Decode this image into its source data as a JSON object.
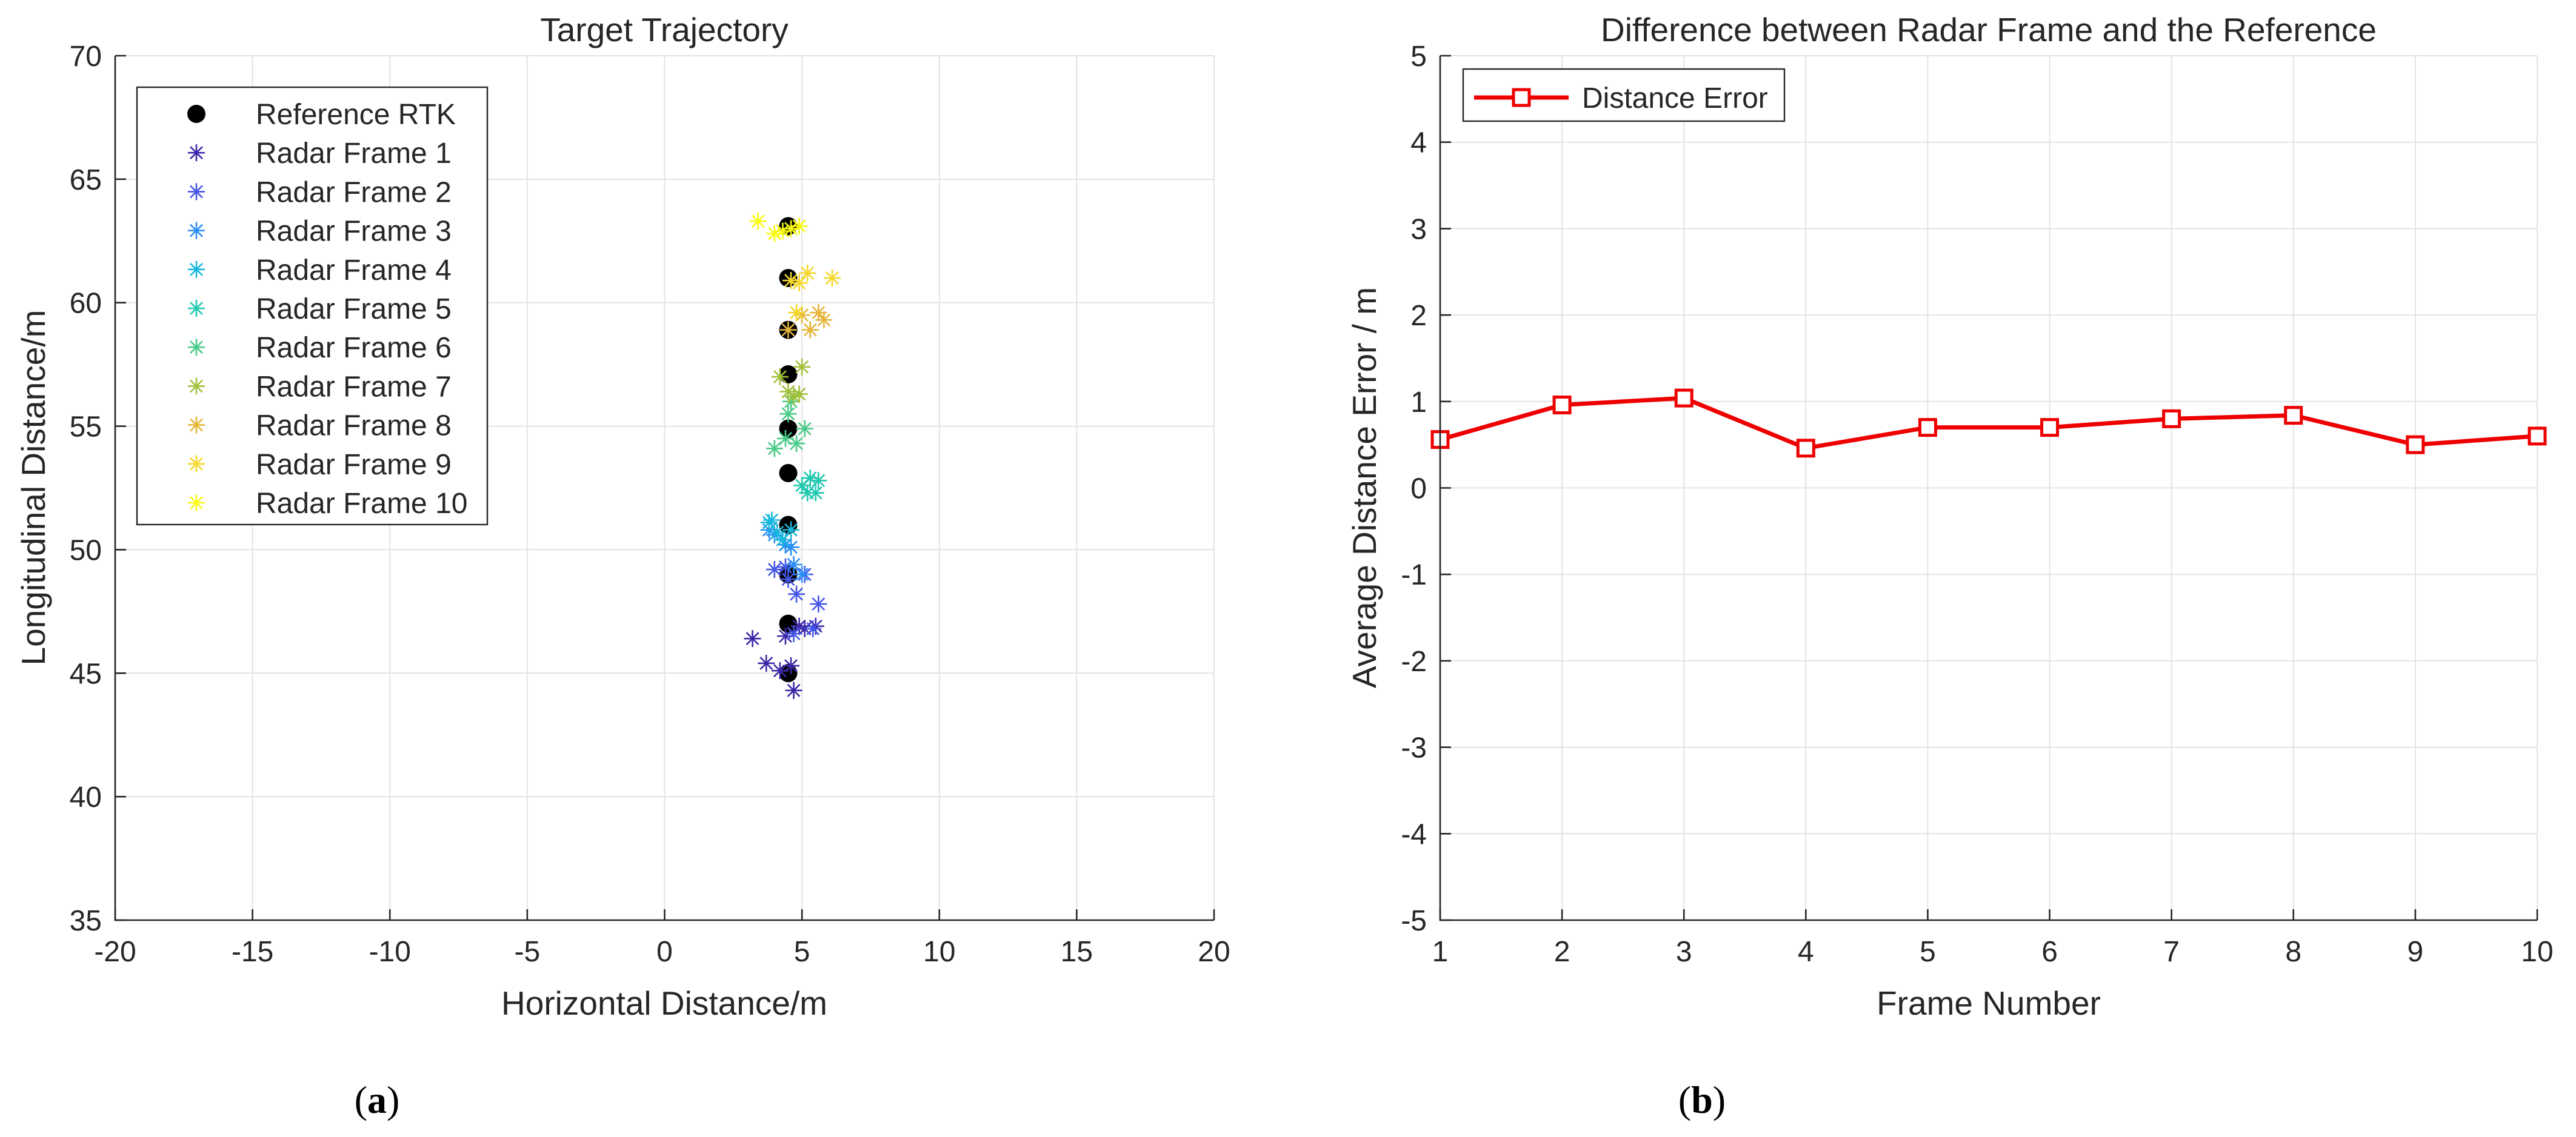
{
  "chart_data": [
    {
      "panel_label": "a",
      "type": "scatter",
      "title": "Target Trajectory",
      "xlabel": "Horizontal Distance/m",
      "ylabel": "Longitudinal Distance/m",
      "xlim": [
        -20,
        20
      ],
      "ylim": [
        35,
        70
      ],
      "xticks": [
        -20,
        -15,
        -10,
        -5,
        0,
        5,
        10,
        15,
        20
      ],
      "yticks": [
        35,
        40,
        45,
        50,
        55,
        60,
        65,
        70
      ],
      "grid": true,
      "legend_position": "top-left",
      "reference": {
        "name": "Reference RTK",
        "color": "#000000",
        "marker": "filled-circle",
        "x": [
          4.5,
          4.5,
          4.5,
          4.5,
          4.5,
          4.5,
          4.5,
          4.5,
          4.5,
          4.5
        ],
        "y": [
          45.0,
          47.0,
          49.0,
          51.0,
          53.1,
          54.9,
          57.1,
          58.9,
          61.0,
          63.1
        ]
      },
      "series": [
        {
          "name": "Radar Frame 1",
          "color": "#3e26a8",
          "marker": "asterisk",
          "x": [
            3.2,
            3.7,
            4.2,
            4.6,
            4.7,
            5.1,
            5.5,
            4.4,
            4.9
          ],
          "y": [
            46.4,
            45.4,
            45.1,
            45.3,
            44.3,
            46.8,
            46.9,
            46.5,
            46.9
          ]
        },
        {
          "name": "Radar Frame 2",
          "color": "#4456e8",
          "marker": "asterisk",
          "x": [
            4.0,
            4.5,
            4.8,
            5.1,
            5.6,
            4.7,
            5.4,
            4.4
          ],
          "y": [
            49.2,
            48.8,
            48.2,
            49.0,
            47.8,
            46.6,
            46.8,
            49.3
          ]
        },
        {
          "name": "Radar Frame 3",
          "color": "#2b8ff8",
          "marker": "asterisk",
          "x": [
            4.0,
            4.4,
            4.7,
            5.0,
            3.8,
            4.6
          ],
          "y": [
            50.6,
            50.2,
            49.4,
            49.0,
            50.8,
            50.1
          ]
        },
        {
          "name": "Radar Frame 4",
          "color": "#18b8dc",
          "marker": "asterisk",
          "x": [
            3.8,
            4.1,
            4.3,
            3.9,
            4.6
          ],
          "y": [
            51.1,
            50.7,
            50.4,
            51.2,
            50.8
          ]
        },
        {
          "name": "Radar Frame 5",
          "color": "#1fc8b0",
          "marker": "asterisk",
          "x": [
            5.0,
            5.3,
            5.5,
            5.6,
            5.2
          ],
          "y": [
            52.6,
            52.9,
            52.3,
            52.8,
            52.3
          ]
        },
        {
          "name": "Radar Frame 6",
          "color": "#48cb86",
          "marker": "asterisk",
          "x": [
            4.0,
            4.4,
            4.8,
            5.1,
            4.6,
            4.5
          ],
          "y": [
            54.1,
            54.5,
            54.3,
            54.9,
            56.0,
            55.5
          ]
        },
        {
          "name": "Radar Frame 7",
          "color": "#a0c03a",
          "marker": "asterisk",
          "x": [
            4.2,
            4.5,
            4.9,
            5.0,
            4.7
          ],
          "y": [
            57.0,
            56.4,
            56.3,
            57.4,
            56.2
          ]
        },
        {
          "name": "Radar Frame 8",
          "color": "#e6b53a",
          "marker": "asterisk",
          "x": [
            4.5,
            5.0,
            5.3,
            5.6,
            5.8
          ],
          "y": [
            58.9,
            59.5,
            58.9,
            59.6,
            59.3
          ]
        },
        {
          "name": "Radar Frame 9",
          "color": "#f5d72c",
          "marker": "asterisk",
          "x": [
            4.9,
            5.2,
            6.1,
            4.6,
            4.8
          ],
          "y": [
            60.8,
            61.2,
            61.0,
            60.9,
            59.6
          ]
        },
        {
          "name": "Radar Frame 10",
          "color": "#f9fb0e",
          "marker": "asterisk",
          "x": [
            3.4,
            4.0,
            4.6,
            4.3,
            4.9
          ],
          "y": [
            63.3,
            62.8,
            63.0,
            62.9,
            63.1
          ]
        }
      ]
    },
    {
      "panel_label": "b",
      "type": "line",
      "title": "Difference between Radar Frame and the Reference",
      "xlabel": "Frame Number",
      "ylabel": "Average Distance Error / m",
      "xlim": [
        1,
        10
      ],
      "ylim": [
        -5,
        5
      ],
      "xticks": [
        1,
        2,
        3,
        4,
        5,
        6,
        7,
        8,
        9,
        10
      ],
      "yticks": [
        -5,
        -4,
        -3,
        -2,
        -1,
        0,
        1,
        2,
        3,
        4,
        5
      ],
      "grid": true,
      "legend_position": "top-left",
      "series": [
        {
          "name": "Distance Error",
          "color": "#ee0000",
          "marker": "open-square",
          "x": [
            1,
            2,
            3,
            4,
            5,
            6,
            7,
            8,
            9,
            10
          ],
          "y": [
            0.56,
            0.96,
            1.04,
            0.46,
            0.7,
            0.7,
            0.8,
            0.84,
            0.5,
            0.6
          ]
        }
      ]
    }
  ]
}
